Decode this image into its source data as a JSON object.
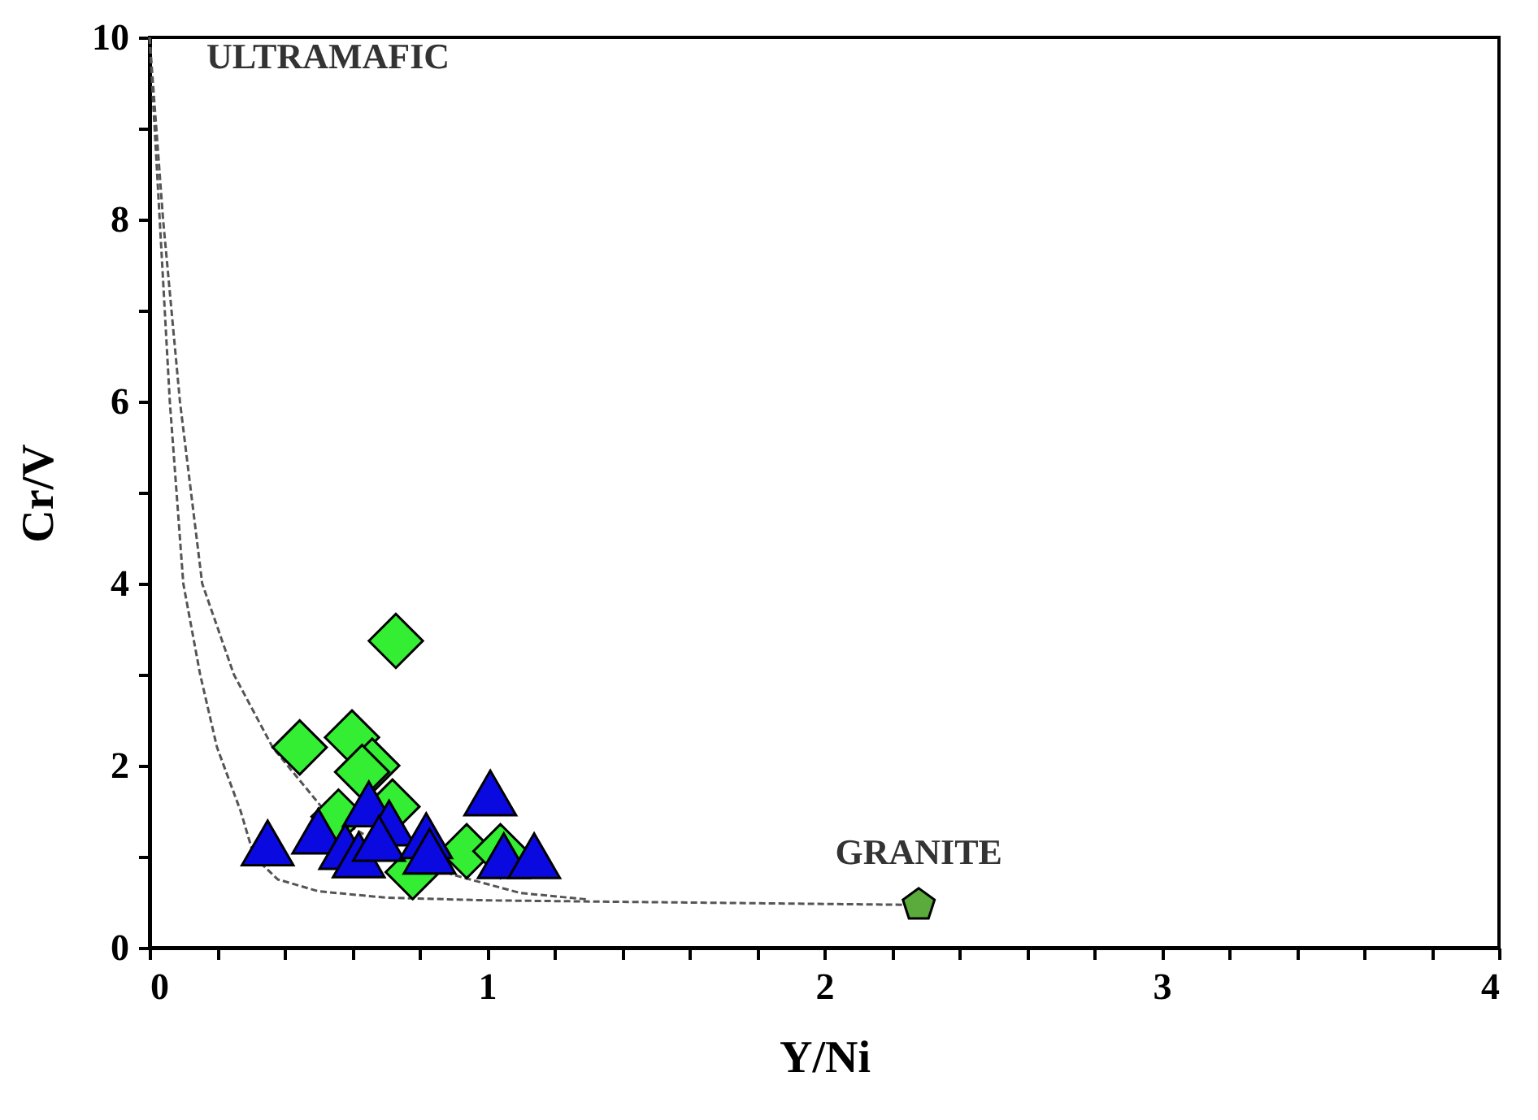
{
  "chart_data": {
    "type": "scatter",
    "xlabel": "Y/Ni",
    "ylabel": "Cr/V",
    "xlim": [
      0,
      4
    ],
    "ylim": [
      0,
      10
    ],
    "xticks": [
      0,
      {
        "value": 0.2,
        "label": null
      },
      {
        "value": 0.4,
        "label": null
      },
      {
        "value": 0.6,
        "label": null
      },
      {
        "value": 0.8,
        "label": null
      },
      1,
      {
        "value": 1.2,
        "label": null
      },
      {
        "value": 1.4,
        "label": null
      },
      {
        "value": 1.6,
        "label": null
      },
      {
        "value": 1.8,
        "label": null
      },
      2,
      {
        "value": 2.2,
        "label": null
      },
      {
        "value": 2.4,
        "label": null
      },
      {
        "value": 2.6,
        "label": null
      },
      {
        "value": 2.8,
        "label": null
      },
      3,
      {
        "value": 3.2,
        "label": null
      },
      {
        "value": 3.4,
        "label": null
      },
      {
        "value": 3.6,
        "label": null
      },
      {
        "value": 3.8,
        "label": null
      },
      4
    ],
    "yticks": [
      0,
      {
        "value": 1,
        "label": null
      },
      2,
      {
        "value": 3,
        "label": null
      },
      4,
      {
        "value": 5,
        "label": null
      },
      6,
      {
        "value": 7,
        "label": null
      },
      8,
      {
        "value": 9,
        "label": null
      },
      10
    ],
    "grid": false,
    "series": [
      {
        "type": "line",
        "line_style": "dashed",
        "color": "#555555",
        "x": [
          0,
          0.03,
          0.06,
          0.1,
          0.15,
          0.2,
          0.27,
          0.31,
          0.38,
          0.5,
          0.7,
          1.0,
          1.5,
          2.28
        ],
        "values": [
          10,
          8,
          6,
          4,
          3,
          2.2,
          1.5,
          1.0,
          0.75,
          0.62,
          0.55,
          0.52,
          0.5,
          0.47
        ]
      },
      {
        "type": "line",
        "line_style": "dashed",
        "color": "#555555",
        "x": [
          0,
          0.04,
          0.09,
          0.156,
          0.25,
          0.365,
          0.52,
          0.7,
          0.9,
          1.1,
          1.3
        ],
        "values": [
          10,
          8,
          6,
          4,
          3,
          2.2,
          1.5,
          1.1,
          0.8,
          0.6,
          0.53
        ]
      },
      {
        "marker": "diamond",
        "color": "#33ee33",
        "x": [
          0.73,
          0.445,
          0.6,
          0.66,
          0.63,
          0.72,
          0.56,
          0.78,
          0.94,
          1.04
        ],
        "values": [
          3.37,
          2.2,
          2.31,
          2.0,
          1.93,
          1.55,
          1.44,
          0.83,
          1.06,
          1.06
        ]
      },
      {
        "marker": "triangle",
        "color": "#0a0ae0",
        "x": [
          0.35,
          0.5,
          0.65,
          0.71,
          0.58,
          0.62,
          0.68,
          0.82,
          0.83,
          1.01,
          1.05,
          1.14
        ],
        "values": [
          1.15,
          1.28,
          1.58,
          1.37,
          1.11,
          1.02,
          1.2,
          1.23,
          1.06,
          1.7,
          1.01,
          1.01
        ]
      },
      {
        "color": "#5aaa3c",
        "x": [
          2.28
        ],
        "values": [
          0.47
        ]
      }
    ],
    "annotations": [
      {
        "text": "ULTRAMAFIC",
        "x": 0,
        "y": 10
      },
      {
        "text": "GRANITE",
        "x": 2.28,
        "y": 0.47
      }
    ]
  }
}
